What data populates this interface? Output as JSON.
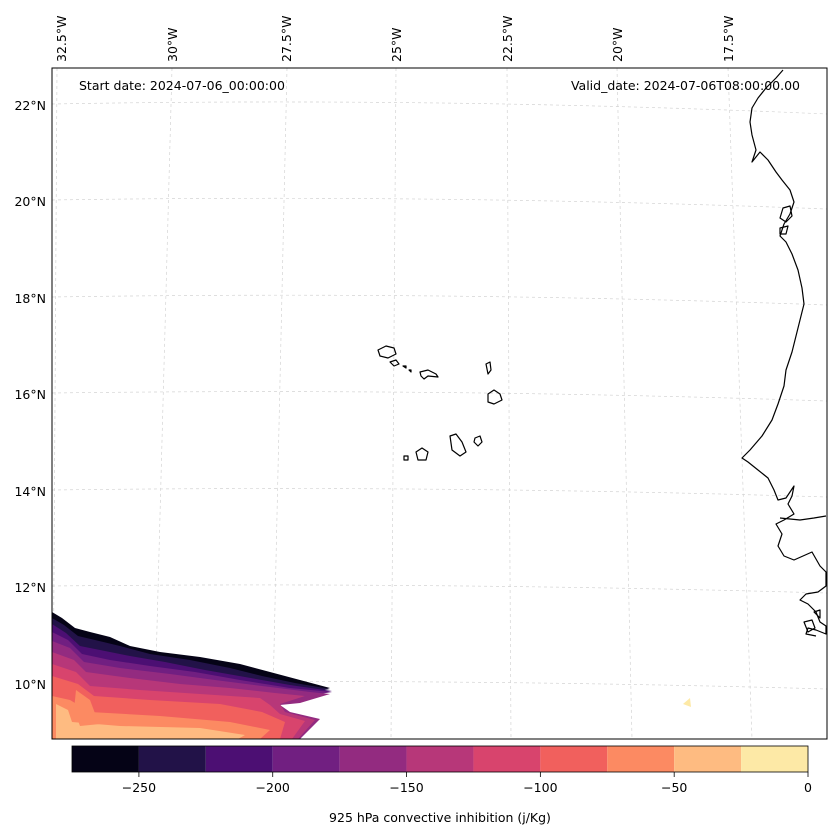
{
  "header": {
    "start_date": "Start date: 2024-07-06_00:00:00",
    "valid_date": "Valid_date: 2024-07-06T08:00:00.00"
  },
  "map": {
    "lon_labels": [
      "32.5°W",
      "30°W",
      "27.5°W",
      "25°W",
      "22.5°W",
      "20°W",
      "17.5°W"
    ],
    "lat_labels": [
      "22°N",
      "20°N",
      "18°N",
      "16°N",
      "14°N",
      "12°N",
      "10°N"
    ],
    "field": "925 hPa convective inhibition",
    "levels": [
      -275,
      -250,
      -225,
      -200,
      -175,
      -150,
      -125,
      -100,
      -75,
      -50,
      -25,
      0
    ],
    "fill_colors": [
      "#050316",
      "#221248",
      "#4c0f73",
      "#711f81",
      "#932b80",
      "#b73779",
      "#d8446d",
      "#f1605d",
      "#fc8a62",
      "#febb81",
      "#fde9a6"
    ]
  },
  "colorbar": {
    "ticks": [
      "−250",
      "−200",
      "−150",
      "−100",
      "−50",
      "0"
    ],
    "tick_values": [
      -250,
      -200,
      -150,
      -100,
      -50,
      0
    ],
    "label": "925 hPa convective inhibition (j/Kg)"
  }
}
